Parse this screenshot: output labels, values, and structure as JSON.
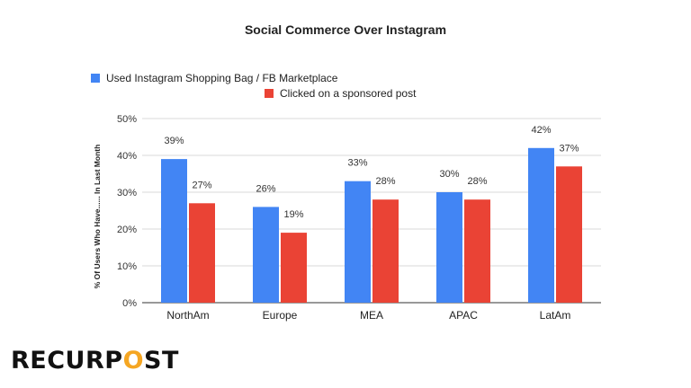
{
  "chart_data": {
    "type": "bar",
    "title": "Social Commerce Over Instagram",
    "xlabel": "",
    "ylabel": "% Of Users Who Have...... In Last Month",
    "categories": [
      "NorthAm",
      "Europe",
      "MEA",
      "APAC",
      "LatAm"
    ],
    "series": [
      {
        "name": "Used Instagram Shopping Bag / FB Marketplace",
        "values": [
          39,
          26,
          33,
          30,
          42
        ],
        "labels": [
          "39%",
          "26%",
          "33%",
          "30%",
          "42%"
        ],
        "color": "#4285f4"
      },
      {
        "name": "Clicked on a sponsored post",
        "values": [
          27,
          19,
          28,
          28,
          37
        ],
        "labels": [
          "27%",
          "19%",
          "28%",
          "28%",
          "37%"
        ],
        "color": "#ea4335"
      }
    ],
    "ylim": [
      0,
      50
    ],
    "yticks": [
      0,
      10,
      20,
      30,
      40,
      50
    ],
    "ytick_labels": [
      "0%",
      "10%",
      "20%",
      "30%",
      "40%",
      "50%"
    ],
    "grid": true,
    "legend_position": "top-left"
  },
  "brand": {
    "logo_pre": "RECURP",
    "logo_o": "O",
    "logo_post": "ST"
  }
}
